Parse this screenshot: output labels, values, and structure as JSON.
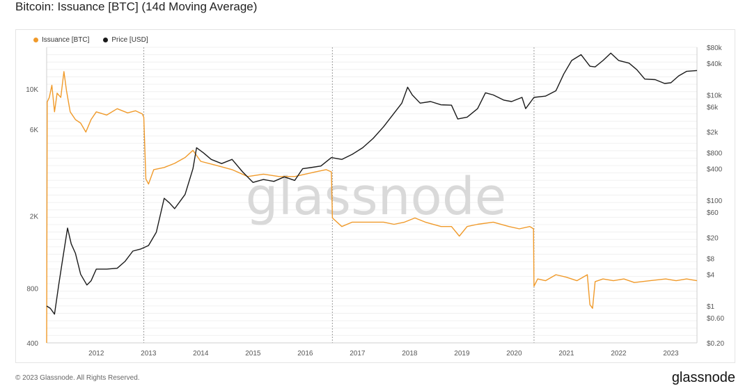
{
  "page": {
    "title": "Bitcoin: Issuance [BTC] (14d Moving Average)",
    "watermark": "glassnode",
    "footer_left": "© 2023 Glassnode. All Rights Reserved.",
    "footer_brand": "glassnode"
  },
  "colors": {
    "issuance": "#f09a2a",
    "price": "#1a1a1a",
    "grid": "#f0f0f0",
    "halving": "#9a9a9a"
  },
  "chart_data": {
    "type": "line",
    "title": "Bitcoin: Issuance [BTC] (14d Moving Average)",
    "legend": [
      "Issuance [BTC]",
      "Price [USD]"
    ],
    "legend_position": "top-left",
    "grid": true,
    "x_range": [
      2011.05,
      2023.5
    ],
    "x_ticks": [
      "2012",
      "2013",
      "2014",
      "2015",
      "2016",
      "2017",
      "2018",
      "2019",
      "2020",
      "2021",
      "2022",
      "2023"
    ],
    "halvings": [
      2012.91,
      2016.52,
      2020.38
    ],
    "left_axis": {
      "scale": "log",
      "range": [
        400,
        17000
      ],
      "ticks": [
        400,
        800,
        2000,
        6000,
        10000
      ],
      "tick_labels": [
        "400",
        "800",
        "2K",
        "6K",
        "10K"
      ]
    },
    "right_axis": {
      "scale": "log",
      "range": [
        0.2,
        80000
      ],
      "ticks": [
        0.2,
        0.6,
        1,
        4,
        8,
        20,
        60,
        100,
        400,
        800,
        2000,
        6000,
        10000,
        40000,
        80000
      ],
      "tick_labels": [
        "$0.20",
        "$0.60",
        "$1",
        "$4",
        "$8",
        "$20",
        "$60",
        "$100",
        "$400",
        "$800",
        "$2k",
        "$6k",
        "$10k",
        "$40k",
        "$80k"
      ]
    },
    "series": [
      {
        "name": "Issuance [BTC]",
        "axis": "left",
        "points": [
          [
            2011.05,
            400
          ],
          [
            2011.06,
            8500
          ],
          [
            2011.1,
            9000
          ],
          [
            2011.15,
            10500
          ],
          [
            2011.2,
            7500
          ],
          [
            2011.25,
            9500
          ],
          [
            2011.32,
            9000
          ],
          [
            2011.38,
            12500
          ],
          [
            2011.43,
            9800
          ],
          [
            2011.5,
            7500
          ],
          [
            2011.6,
            6800
          ],
          [
            2011.7,
            6500
          ],
          [
            2011.8,
            5800
          ],
          [
            2011.9,
            6800
          ],
          [
            2012.0,
            7500
          ],
          [
            2012.2,
            7200
          ],
          [
            2012.4,
            7800
          ],
          [
            2012.6,
            7400
          ],
          [
            2012.75,
            7600
          ],
          [
            2012.88,
            7300
          ],
          [
            2012.91,
            7000
          ],
          [
            2012.95,
            3200
          ],
          [
            2013.0,
            3000
          ],
          [
            2013.1,
            3600
          ],
          [
            2013.3,
            3700
          ],
          [
            2013.5,
            3900
          ],
          [
            2013.7,
            4200
          ],
          [
            2013.85,
            4600
          ],
          [
            2014.0,
            4000
          ],
          [
            2014.3,
            3800
          ],
          [
            2014.6,
            3600
          ],
          [
            2014.9,
            3300
          ],
          [
            2015.2,
            3400
          ],
          [
            2015.5,
            3300
          ],
          [
            2015.8,
            3300
          ],
          [
            2016.0,
            3400
          ],
          [
            2016.2,
            3500
          ],
          [
            2016.4,
            3600
          ],
          [
            2016.5,
            3500
          ],
          [
            2016.52,
            1950
          ],
          [
            2016.7,
            1750
          ],
          [
            2016.9,
            1850
          ],
          [
            2017.2,
            1850
          ],
          [
            2017.5,
            1850
          ],
          [
            2017.7,
            1800
          ],
          [
            2017.9,
            1850
          ],
          [
            2018.1,
            1950
          ],
          [
            2018.3,
            1850
          ],
          [
            2018.6,
            1750
          ],
          [
            2018.8,
            1750
          ],
          [
            2018.95,
            1550
          ],
          [
            2019.1,
            1750
          ],
          [
            2019.3,
            1800
          ],
          [
            2019.6,
            1850
          ],
          [
            2019.9,
            1750
          ],
          [
            2020.1,
            1700
          ],
          [
            2020.3,
            1750
          ],
          [
            2020.37,
            1700
          ],
          [
            2020.38,
            820
          ],
          [
            2020.45,
            900
          ],
          [
            2020.6,
            880
          ],
          [
            2020.8,
            950
          ],
          [
            2021.0,
            920
          ],
          [
            2021.2,
            880
          ],
          [
            2021.4,
            950
          ],
          [
            2021.45,
            650
          ],
          [
            2021.5,
            620
          ],
          [
            2021.55,
            870
          ],
          [
            2021.7,
            900
          ],
          [
            2021.9,
            880
          ],
          [
            2022.1,
            900
          ],
          [
            2022.3,
            860
          ],
          [
            2022.6,
            880
          ],
          [
            2022.9,
            900
          ],
          [
            2023.1,
            880
          ],
          [
            2023.3,
            900
          ],
          [
            2023.5,
            880
          ]
        ]
      },
      {
        "name": "Price [USD]",
        "axis": "right",
        "points": [
          [
            2011.05,
            1
          ],
          [
            2011.12,
            0.9
          ],
          [
            2011.2,
            0.7
          ],
          [
            2011.28,
            2.5
          ],
          [
            2011.35,
            7
          ],
          [
            2011.45,
            30
          ],
          [
            2011.52,
            15
          ],
          [
            2011.6,
            10
          ],
          [
            2011.7,
            4
          ],
          [
            2011.82,
            2.5
          ],
          [
            2011.9,
            3
          ],
          [
            2012.0,
            5
          ],
          [
            2012.2,
            5
          ],
          [
            2012.4,
            5.2
          ],
          [
            2012.55,
            7
          ],
          [
            2012.7,
            11
          ],
          [
            2012.85,
            12
          ],
          [
            2013.0,
            14
          ],
          [
            2013.15,
            25
          ],
          [
            2013.3,
            110
          ],
          [
            2013.4,
            90
          ],
          [
            2013.5,
            70
          ],
          [
            2013.7,
            130
          ],
          [
            2013.85,
            400
          ],
          [
            2013.92,
            1000
          ],
          [
            2014.05,
            800
          ],
          [
            2014.2,
            600
          ],
          [
            2014.4,
            500
          ],
          [
            2014.6,
            600
          ],
          [
            2014.8,
            350
          ],
          [
            2015.0,
            220
          ],
          [
            2015.2,
            250
          ],
          [
            2015.4,
            230
          ],
          [
            2015.6,
            280
          ],
          [
            2015.8,
            240
          ],
          [
            2015.95,
            400
          ],
          [
            2016.1,
            420
          ],
          [
            2016.3,
            450
          ],
          [
            2016.5,
            650
          ],
          [
            2016.7,
            600
          ],
          [
            2016.9,
            750
          ],
          [
            2017.1,
            1000
          ],
          [
            2017.3,
            1500
          ],
          [
            2017.5,
            2500
          ],
          [
            2017.7,
            4500
          ],
          [
            2017.85,
            7000
          ],
          [
            2017.96,
            14000
          ],
          [
            2018.05,
            10000
          ],
          [
            2018.2,
            7000
          ],
          [
            2018.4,
            7500
          ],
          [
            2018.6,
            6500
          ],
          [
            2018.8,
            6400
          ],
          [
            2018.92,
            3500
          ],
          [
            2019.1,
            3800
          ],
          [
            2019.3,
            5500
          ],
          [
            2019.45,
            11000
          ],
          [
            2019.6,
            10000
          ],
          [
            2019.8,
            8000
          ],
          [
            2019.95,
            7500
          ],
          [
            2020.15,
            9000
          ],
          [
            2020.22,
            5500
          ],
          [
            2020.38,
            9000
          ],
          [
            2020.6,
            9500
          ],
          [
            2020.8,
            12000
          ],
          [
            2020.95,
            25000
          ],
          [
            2021.1,
            45000
          ],
          [
            2021.28,
            58000
          ],
          [
            2021.45,
            35000
          ],
          [
            2021.55,
            34000
          ],
          [
            2021.7,
            45000
          ],
          [
            2021.85,
            62000
          ],
          [
            2022.0,
            45000
          ],
          [
            2022.2,
            40000
          ],
          [
            2022.35,
            30000
          ],
          [
            2022.5,
            20000
          ],
          [
            2022.7,
            19500
          ],
          [
            2022.88,
            16500
          ],
          [
            2023.0,
            17000
          ],
          [
            2023.15,
            23000
          ],
          [
            2023.3,
            28000
          ],
          [
            2023.5,
            29000
          ]
        ]
      }
    ]
  }
}
